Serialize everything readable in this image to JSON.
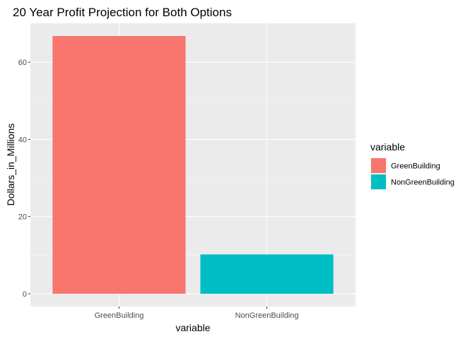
{
  "chart_data": {
    "type": "bar",
    "title": "20 Year Profit Projection for Both Options",
    "xlabel": "variable",
    "ylabel": "Dollars_in_Millions",
    "categories": [
      "GreenBuilding",
      "NonGreenBuilding"
    ],
    "values": [
      66.8,
      10.2
    ],
    "colors": [
      "#F8766D",
      "#00BFC4"
    ],
    "ylim": [
      -3.3,
      70.1
    ],
    "yticks": [
      0,
      20,
      40,
      60
    ],
    "ytick_labels": [
      "0",
      "20",
      "40",
      "60"
    ],
    "grid": true,
    "panel_background": "#EBEBEB",
    "legend": {
      "title": "variable",
      "position": "right",
      "entries": [
        "GreenBuilding",
        "NonGreenBuilding"
      ]
    }
  }
}
